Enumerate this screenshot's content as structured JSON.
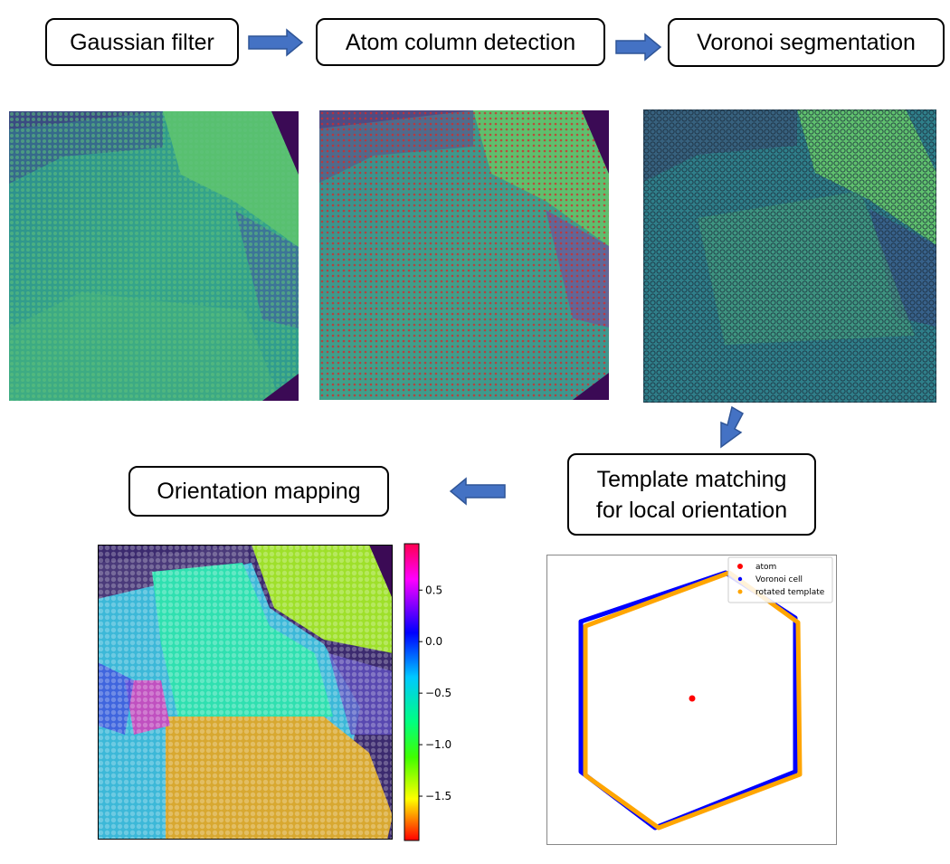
{
  "steps": {
    "gaussian": "Gaussian filter",
    "atom_detection": "Atom column detection",
    "voronoi": "Voronoi segmentation",
    "template_line1": "Template matching",
    "template_line2": "for local orientation",
    "orientation": "Orientation mapping"
  },
  "colors": {
    "arrow_fill": "#4472c4",
    "arrow_stroke": "#2f5597",
    "micrograph_bg": "#3b2a6e",
    "micrograph_lattice": "#2f9a8f",
    "micrograph_bright": "#7fcf5a",
    "atom_marker": "#d62728",
    "hexagon_voronoi": "#0000ff",
    "hexagon_template": "#ffa500",
    "atom_point": "#ff0000"
  },
  "hexagon_plot": {
    "legend": [
      {
        "label": "atom",
        "color": "#ff0000"
      },
      {
        "label": "Voronoi cell",
        "color": "#0000ff"
      },
      {
        "label": "rotated template",
        "color": "#ffa500"
      }
    ]
  },
  "colorbar": {
    "ticks": [
      "0.5",
      "0.0",
      "−0.5",
      "−1.0",
      "−1.5"
    ],
    "range": [
      -1.93,
      0.95
    ],
    "tick_values": [
      0.5,
      0.0,
      -0.5,
      -1.0,
      -1.5
    ]
  }
}
